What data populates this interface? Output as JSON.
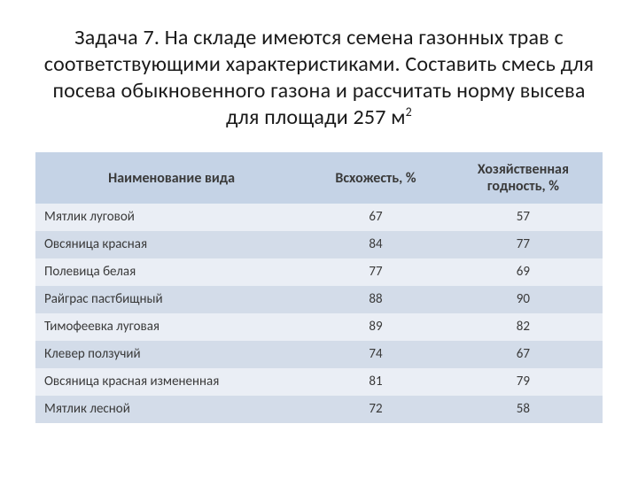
{
  "title_html": "Задача 7. На складе имеются семена газонных трав с соответствующими характеристиками. Составить смесь для посева обыкновенного газона и рассчитать норму высева для площади 257 м<sup>2</sup>",
  "table": {
    "columns": [
      {
        "label": "Наименование вида",
        "align": "left",
        "width_class": "col-name"
      },
      {
        "label": "Всхожесть, %",
        "align": "center",
        "width_class": "col-germ"
      },
      {
        "label": "Хозяйственная годность, %",
        "align": "center",
        "width_class": "col-util"
      }
    ],
    "rows": [
      {
        "name": "Мятлик луговой",
        "germ": 67,
        "util": 57
      },
      {
        "name": "Овсяница красная",
        "germ": 84,
        "util": 77
      },
      {
        "name": "Полевица  белая",
        "germ": 77,
        "util": 69
      },
      {
        "name": "Райграс пастбищный",
        "germ": 88,
        "util": 90
      },
      {
        "name": "Тимофеевка луговая",
        "germ": 89,
        "util": 82
      },
      {
        "name": "Клевер ползучий",
        "germ": 74,
        "util": 67
      },
      {
        "name": "Овсяница красная измененная",
        "germ": 81,
        "util": 79
      },
      {
        "name": "Мятлик лесной",
        "germ": 72,
        "util": 58
      }
    ],
    "header_bg": "#c5d3e6",
    "row_bg_odd": "#eaeef5",
    "row_bg_even": "#d3dce9",
    "text_color": "#3a3a3a",
    "header_text_color": "#3a3a3a"
  }
}
